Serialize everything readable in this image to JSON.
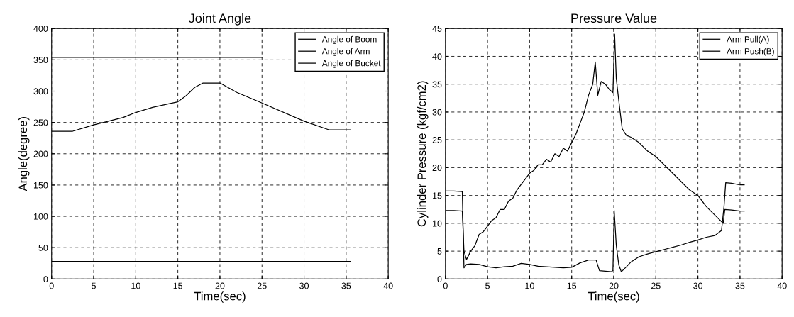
{
  "chart_data": [
    {
      "type": "line",
      "title": "Joint Angle",
      "xlabel": "Time(sec)",
      "ylabel": "Angle(degree)",
      "xlim": [
        0,
        40
      ],
      "xticks": [
        0,
        5,
        10,
        15,
        20,
        25,
        30,
        35,
        40
      ],
      "ylim": [
        0,
        400
      ],
      "yticks": [
        0,
        50,
        100,
        150,
        200,
        250,
        300,
        350,
        400
      ],
      "grid": true,
      "legend": "top right",
      "line_style": "solid",
      "marker": "none",
      "series": [
        {
          "name": "Angle of Boom",
          "color": "#000000",
          "x": [
            0,
            35.5
          ],
          "values": [
            28,
            28
          ]
        },
        {
          "name": "Angle of Arm",
          "color": "#000000",
          "x": [
            0,
            2.5,
            5,
            8.5,
            10,
            12,
            14,
            15,
            16,
            17,
            18,
            20,
            22,
            25,
            30,
            33,
            35.5
          ],
          "values": [
            236,
            236,
            246,
            258,
            266,
            274,
            280,
            283,
            293,
            306,
            313,
            313,
            298,
            281,
            252,
            238,
            238
          ]
        },
        {
          "name": "Angle of Bucket",
          "color": "#000000",
          "x": [
            0,
            25
          ],
          "values": [
            354,
            354
          ]
        }
      ]
    },
    {
      "type": "line",
      "title": "Pressure Value",
      "xlabel": "Time(sec)",
      "ylabel": "Cylinder Pressure (kgf/cm2)",
      "xlim": [
        0,
        40
      ],
      "xticks": [
        0,
        5,
        10,
        15,
        20,
        25,
        30,
        35,
        40
      ],
      "ylim": [
        0,
        45
      ],
      "yticks": [
        0,
        5,
        10,
        15,
        20,
        25,
        30,
        35,
        40,
        45
      ],
      "grid": true,
      "legend": "top right",
      "line_style": "solid",
      "marker": "none",
      "series": [
        {
          "name": "Arm Pull(A)",
          "color": "#000000",
          "x": [
            0,
            1,
            2.0,
            2.2,
            2.5,
            3,
            3.5,
            4,
            4.5,
            5,
            5.5,
            6,
            6.5,
            7,
            7.5,
            8,
            8.5,
            9,
            9.5,
            10,
            10.5,
            11,
            11.5,
            12,
            12.5,
            13,
            13.5,
            14,
            14.5,
            15,
            15.5,
            16,
            16.5,
            17,
            17.5,
            17.8,
            18.1,
            18.5,
            19,
            19.5,
            19.9,
            20.1,
            20.3,
            20.6,
            21,
            21.5,
            22,
            23,
            24,
            25,
            26,
            27,
            28,
            29,
            30,
            31,
            32,
            33,
            33.2,
            34,
            35,
            35.5
          ],
          "values": [
            12.3,
            12.3,
            12.2,
            5,
            3.5,
            5,
            6,
            8,
            8.5,
            9.5,
            10.5,
            11,
            12.5,
            12.5,
            14,
            14.5,
            16,
            17,
            18,
            19,
            19.5,
            20.5,
            20.5,
            21.5,
            21,
            22.5,
            22,
            23.5,
            23,
            24.5,
            26,
            28,
            30,
            33,
            35,
            39,
            33,
            35.5,
            35,
            34,
            33.5,
            44,
            36,
            32,
            27,
            25.8,
            25.5,
            24.5,
            23,
            22,
            20.5,
            19,
            17.5,
            16,
            15,
            13,
            11.5,
            10,
            12.5,
            12.4,
            12.2,
            12.2
          ]
        },
        {
          "name": "Arm Push(B)",
          "color": "#000000",
          "x": [
            0,
            1,
            2.0,
            2.2,
            2.5,
            3,
            4,
            5,
            6,
            7,
            8,
            9,
            10,
            11,
            12,
            13,
            14,
            15,
            16,
            17,
            17.9,
            18.3,
            19,
            19.7,
            19.9,
            20.05,
            20.3,
            20.6,
            20.9,
            21.5,
            22,
            23,
            24,
            25,
            26,
            27,
            28,
            29,
            30,
            31,
            32,
            32.8,
            33.1,
            33.3,
            34,
            35,
            35.5
          ],
          "values": [
            15.8,
            15.8,
            15.7,
            2,
            2.6,
            2.7,
            2.6,
            2.2,
            2,
            2.2,
            2.3,
            2.8,
            2.6,
            2.3,
            2.2,
            2.1,
            2,
            2.1,
            2.9,
            3.4,
            3.4,
            1.5,
            1.4,
            1.3,
            1.5,
            12.3,
            6,
            2.5,
            1.3,
            2.2,
            3,
            4,
            4.5,
            4.9,
            5.3,
            5.7,
            6.1,
            6.6,
            7,
            7.5,
            7.8,
            8.7,
            13,
            17.3,
            17.2,
            16.9,
            16.9
          ]
        }
      ]
    }
  ]
}
